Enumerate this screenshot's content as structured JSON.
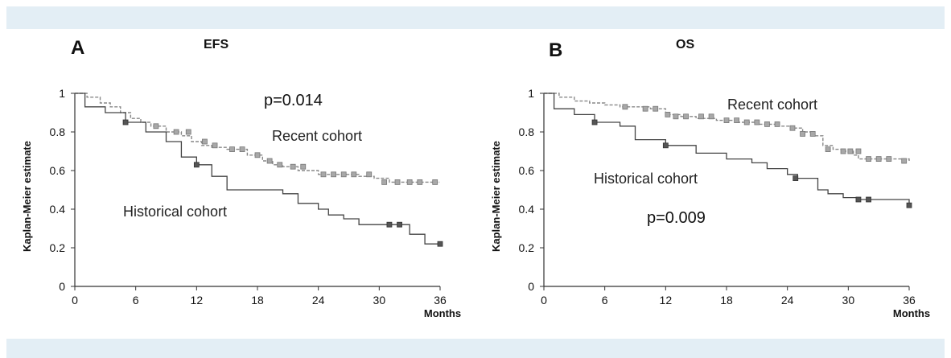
{
  "chart_data": [
    {
      "panel": "A",
      "type": "line",
      "title": "EFS",
      "xlabel": "Months",
      "ylabel": "Kaplan-Meier estimate",
      "xlim": [
        0,
        36
      ],
      "ylim": [
        0,
        1
      ],
      "xticks": [
        "0",
        "6",
        "12",
        "18",
        "24",
        "30",
        "36"
      ],
      "yticks": [
        "0",
        "0.2",
        "0.4",
        "0.6",
        "0.8",
        "1"
      ],
      "pvalue": "p=0.014",
      "curve_style": "step",
      "series": [
        {
          "name": "Recent cohort",
          "style": "dashed",
          "color": "#888888",
          "x": [
            0,
            1.2,
            2.5,
            3.5,
            4.5,
            5.5,
            6.5,
            7.5,
            9,
            10.5,
            11.5,
            12.5,
            13.5,
            15,
            17,
            18.5,
            19.5,
            20.5,
            22,
            24,
            26,
            28,
            29.5,
            31,
            33,
            34.5,
            36
          ],
          "y": [
            1.0,
            0.98,
            0.95,
            0.93,
            0.9,
            0.87,
            0.85,
            0.83,
            0.8,
            0.78,
            0.75,
            0.73,
            0.72,
            0.71,
            0.68,
            0.65,
            0.63,
            0.62,
            0.6,
            0.58,
            0.58,
            0.57,
            0.56,
            0.54,
            0.54,
            0.54,
            0.54
          ],
          "censored_x": [
            8,
            10,
            11.2,
            12.8,
            13.8,
            15.5,
            16.5,
            18,
            19.2,
            20.2,
            21.5,
            22.5,
            24.5,
            25.5,
            26.5,
            27.5,
            29,
            30.5,
            31.8,
            33,
            34,
            35.5
          ],
          "censored_y": [
            0.83,
            0.8,
            0.8,
            0.75,
            0.73,
            0.71,
            0.71,
            0.68,
            0.65,
            0.63,
            0.62,
            0.62,
            0.58,
            0.58,
            0.58,
            0.58,
            0.58,
            0.54,
            0.54,
            0.54,
            0.54,
            0.54
          ]
        },
        {
          "name": "Historical cohort",
          "style": "solid",
          "color": "#444444",
          "x": [
            0,
            1,
            3,
            5,
            7,
            9,
            10.5,
            12,
            13.5,
            15,
            18,
            20.5,
            22,
            24,
            25,
            26.5,
            28,
            30,
            33,
            34.5,
            36
          ],
          "y": [
            1.0,
            0.93,
            0.9,
            0.85,
            0.8,
            0.75,
            0.67,
            0.63,
            0.57,
            0.5,
            0.5,
            0.48,
            0.43,
            0.4,
            0.37,
            0.35,
            0.32,
            0.32,
            0.27,
            0.22,
            0.22
          ],
          "censored_x": [
            5,
            12,
            31,
            32,
            36
          ],
          "censored_y": [
            0.85,
            0.63,
            0.32,
            0.32,
            0.22
          ]
        }
      ]
    },
    {
      "panel": "B",
      "type": "line",
      "title": "OS",
      "xlabel": "Months",
      "ylabel": "Kaplan-Meier estimate",
      "xlim": [
        0,
        36
      ],
      "ylim": [
        0,
        1
      ],
      "xticks": [
        "0",
        "6",
        "12",
        "18",
        "24",
        "30",
        "36"
      ],
      "yticks": [
        "0",
        "0.2",
        "0.4",
        "0.6",
        "0.8",
        "1"
      ],
      "pvalue": "p=0.009",
      "curve_style": "step",
      "series": [
        {
          "name": "Recent cohort",
          "style": "dashed",
          "color": "#888888",
          "x": [
            0,
            1.5,
            3,
            4.5,
            6,
            7.5,
            9,
            10.5,
            12,
            13.5,
            15,
            17,
            19,
            21,
            23,
            24.5,
            25.5,
            26.5,
            27.5,
            28.5,
            29.5,
            30.5,
            31,
            36
          ],
          "y": [
            1.0,
            0.98,
            0.96,
            0.95,
            0.94,
            0.93,
            0.93,
            0.92,
            0.89,
            0.88,
            0.87,
            0.86,
            0.85,
            0.84,
            0.83,
            0.82,
            0.8,
            0.78,
            0.73,
            0.71,
            0.7,
            0.68,
            0.66,
            0.65
          ],
          "censored_x": [
            8,
            10,
            11,
            12.2,
            13,
            14,
            15.5,
            16.5,
            18,
            19,
            20,
            21,
            22,
            23,
            24.5,
            25.5,
            26.5,
            28,
            29.5,
            30.2,
            31,
            32,
            33,
            34,
            35.5
          ],
          "censored_y": [
            0.93,
            0.92,
            0.92,
            0.89,
            0.88,
            0.88,
            0.88,
            0.88,
            0.86,
            0.86,
            0.85,
            0.85,
            0.84,
            0.84,
            0.82,
            0.79,
            0.79,
            0.71,
            0.7,
            0.7,
            0.7,
            0.66,
            0.66,
            0.66,
            0.65
          ],
          "anno_pos": "top"
        },
        {
          "name": "Historical cohort",
          "style": "solid",
          "color": "#444444",
          "x": [
            0,
            1,
            3,
            5,
            7.5,
            9,
            12,
            15,
            18,
            20.5,
            22,
            24,
            25,
            27,
            28,
            29.5,
            31,
            34,
            36
          ],
          "y": [
            1.0,
            0.92,
            0.89,
            0.85,
            0.83,
            0.76,
            0.73,
            0.69,
            0.66,
            0.64,
            0.61,
            0.58,
            0.56,
            0.5,
            0.48,
            0.46,
            0.45,
            0.45,
            0.42
          ],
          "censored_x": [
            5,
            12,
            24.8,
            31,
            32,
            36
          ],
          "censored_y": [
            0.85,
            0.73,
            0.56,
            0.45,
            0.45,
            0.42
          ]
        }
      ]
    }
  ]
}
